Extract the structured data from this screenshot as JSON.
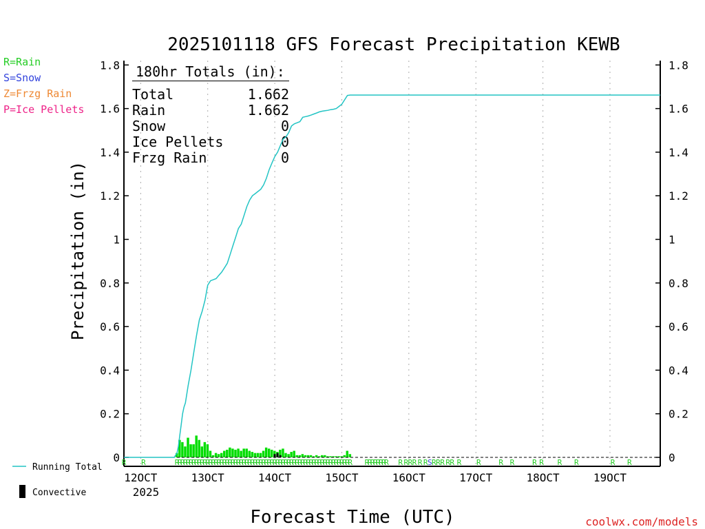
{
  "chart_data": {
    "type": "line",
    "title": "2025101118 GFS Forecast Precipitation KEWB",
    "ylabel": "Precipitation (in)",
    "xlabel": "Forecast Time (UTC)",
    "credit": "coolwx.com/models",
    "ylim": [
      0,
      1.82
    ],
    "xlim_hours": [
      -6,
      186
    ],
    "yticks": [
      {
        "value": 0,
        "label": "0"
      },
      {
        "value": 0.2,
        "label": "0.2"
      },
      {
        "value": 0.4,
        "label": "0.4"
      },
      {
        "value": 0.6,
        "label": "0.6"
      },
      {
        "value": 0.8,
        "label": "0.8"
      },
      {
        "value": 1,
        "label": "1"
      },
      {
        "value": 1.2,
        "label": "1.2"
      },
      {
        "value": 1.4,
        "label": "1.4"
      },
      {
        "value": 1.6,
        "label": "1.6"
      },
      {
        "value": 1.8,
        "label": "1.8"
      }
    ],
    "xticks": [
      {
        "hour": 0,
        "label": "12OCT"
      },
      {
        "hour": 24,
        "label": "13OCT"
      },
      {
        "hour": 48,
        "label": "14OCT"
      },
      {
        "hour": 72,
        "label": "15OCT"
      },
      {
        "hour": 96,
        "label": "16OCT"
      },
      {
        "hour": 120,
        "label": "17OCT"
      },
      {
        "hour": 144,
        "label": "18OCT"
      },
      {
        "hour": 168,
        "label": "19OCT"
      }
    ],
    "year_label": "2025",
    "legend": [
      {
        "label": "R=Rain",
        "color": "#22cc22"
      },
      {
        "label": "S=Snow",
        "color": "#3344dd"
      },
      {
        "label": "Z=Frzg Rain",
        "color": "#ee8833"
      },
      {
        "label": "P=Ice Pellets",
        "color": "#ee2288"
      }
    ],
    "legend_bottom": [
      {
        "label": "Running Total",
        "color": "#22c4c4"
      },
      {
        "label": "Convective",
        "color": "#000000"
      }
    ],
    "totals": {
      "header": "180hr Totals (in):",
      "rows": [
        {
          "label": "Total",
          "value": "1.662"
        },
        {
          "label": "Rain",
          "value": "1.662"
        },
        {
          "label": "Snow",
          "value": "0"
        },
        {
          "label": "Ice Pellets",
          "value": "0"
        },
        {
          "label": "Frzg Rain",
          "value": "0"
        }
      ]
    },
    "series": [
      {
        "name": "Running Total",
        "color": "#22c4c4",
        "x": [
          -6,
          12,
          13,
          13.5,
          14,
          14.5,
          15,
          15.5,
          16,
          17,
          18,
          19,
          20,
          21,
          22,
          23,
          24,
          25,
          26,
          27,
          28,
          29,
          30,
          31,
          32,
          33,
          34,
          35,
          36,
          37,
          38,
          39,
          40,
          41,
          42,
          43,
          44,
          45,
          46,
          47,
          48,
          49,
          50,
          51,
          52,
          53,
          54,
          55,
          56,
          57,
          58,
          59,
          60,
          61,
          62,
          63,
          64,
          65,
          66,
          67,
          68,
          69,
          70,
          71,
          72,
          73,
          74,
          75,
          76,
          186
        ],
        "values": [
          0,
          0,
          0.02,
          0.05,
          0.1,
          0.15,
          0.2,
          0.23,
          0.25,
          0.33,
          0.4,
          0.48,
          0.56,
          0.63,
          0.67,
          0.72,
          0.79,
          0.81,
          0.815,
          0.82,
          0.835,
          0.85,
          0.87,
          0.89,
          0.93,
          0.97,
          1.01,
          1.05,
          1.07,
          1.11,
          1.15,
          1.18,
          1.2,
          1.21,
          1.22,
          1.23,
          1.25,
          1.28,
          1.32,
          1.35,
          1.38,
          1.4,
          1.43,
          1.46,
          1.47,
          1.49,
          1.52,
          1.53,
          1.535,
          1.54,
          1.56,
          1.563,
          1.566,
          1.57,
          1.575,
          1.58,
          1.585,
          1.588,
          1.59,
          1.592,
          1.595,
          1.597,
          1.6,
          1.61,
          1.62,
          1.64,
          1.66,
          1.662,
          1.662,
          1.662
        ]
      },
      {
        "name": "Precip per period",
        "color": "#00dd00",
        "x": [
          13,
          14,
          15,
          16,
          17,
          18,
          19,
          20,
          21,
          22,
          23,
          24,
          25,
          26,
          27,
          28,
          29,
          30,
          31,
          32,
          33,
          34,
          35,
          36,
          37,
          38,
          39,
          40,
          41,
          42,
          43,
          44,
          45,
          46,
          47,
          48,
          49,
          50,
          51,
          52,
          53,
          54,
          55,
          56,
          57,
          58,
          59,
          60,
          61,
          62,
          63,
          64,
          65,
          66,
          67,
          68,
          69,
          70,
          71,
          72,
          73,
          74,
          75
        ],
        "values": [
          0.02,
          0.08,
          0.07,
          0.05,
          0.09,
          0.06,
          0.06,
          0.1,
          0.08,
          0.05,
          0.07,
          0.06,
          0.03,
          0.01,
          0.02,
          0.015,
          0.02,
          0.03,
          0.035,
          0.045,
          0.04,
          0.035,
          0.04,
          0.03,
          0.04,
          0.04,
          0.03,
          0.025,
          0.02,
          0.02,
          0.02,
          0.03,
          0.045,
          0.04,
          0.035,
          0.03,
          0.025,
          0.035,
          0.04,
          0.02,
          0.015,
          0.025,
          0.03,
          0.01,
          0.01,
          0.015,
          0.01,
          0.01,
          0.01,
          0.005,
          0.01,
          0.005,
          0.01,
          0.01,
          0.005,
          0.005,
          0.005,
          0.005,
          0.005,
          0.005,
          0.01,
          0.03,
          0.015
        ]
      },
      {
        "name": "Convective",
        "color": "#000000",
        "x": [
          48,
          49,
          50
        ],
        "values": [
          0.015,
          0.02,
          0.01
        ]
      }
    ],
    "type_markers": [
      {
        "hour": -6,
        "type": "R"
      },
      {
        "hour": 1,
        "type": "R"
      },
      {
        "hour": 13,
        "type": "R",
        "run_until": 75
      },
      {
        "hour": 81,
        "type": "R",
        "run_until": 88
      },
      {
        "hour": 93,
        "type": "R"
      },
      {
        "hour": 95,
        "type": "R"
      },
      {
        "hour": 96.5,
        "type": "R"
      },
      {
        "hour": 98,
        "type": "R"
      },
      {
        "hour": 100,
        "type": "R"
      },
      {
        "hour": 102,
        "type": "R"
      },
      {
        "hour": 103.5,
        "type": "S"
      },
      {
        "hour": 105,
        "type": "R"
      },
      {
        "hour": 106.5,
        "type": "R"
      },
      {
        "hour": 108,
        "type": "R"
      },
      {
        "hour": 110,
        "type": "R"
      },
      {
        "hour": 111.5,
        "type": "R"
      },
      {
        "hour": 114,
        "type": "R"
      },
      {
        "hour": 121,
        "type": "R"
      },
      {
        "hour": 129,
        "type": "R"
      },
      {
        "hour": 133,
        "type": "R"
      },
      {
        "hour": 141,
        "type": "R"
      },
      {
        "hour": 143.5,
        "type": "R"
      },
      {
        "hour": 150,
        "type": "R"
      },
      {
        "hour": 156,
        "type": "R"
      },
      {
        "hour": 169,
        "type": "R"
      },
      {
        "hour": 175,
        "type": "R"
      }
    ]
  }
}
